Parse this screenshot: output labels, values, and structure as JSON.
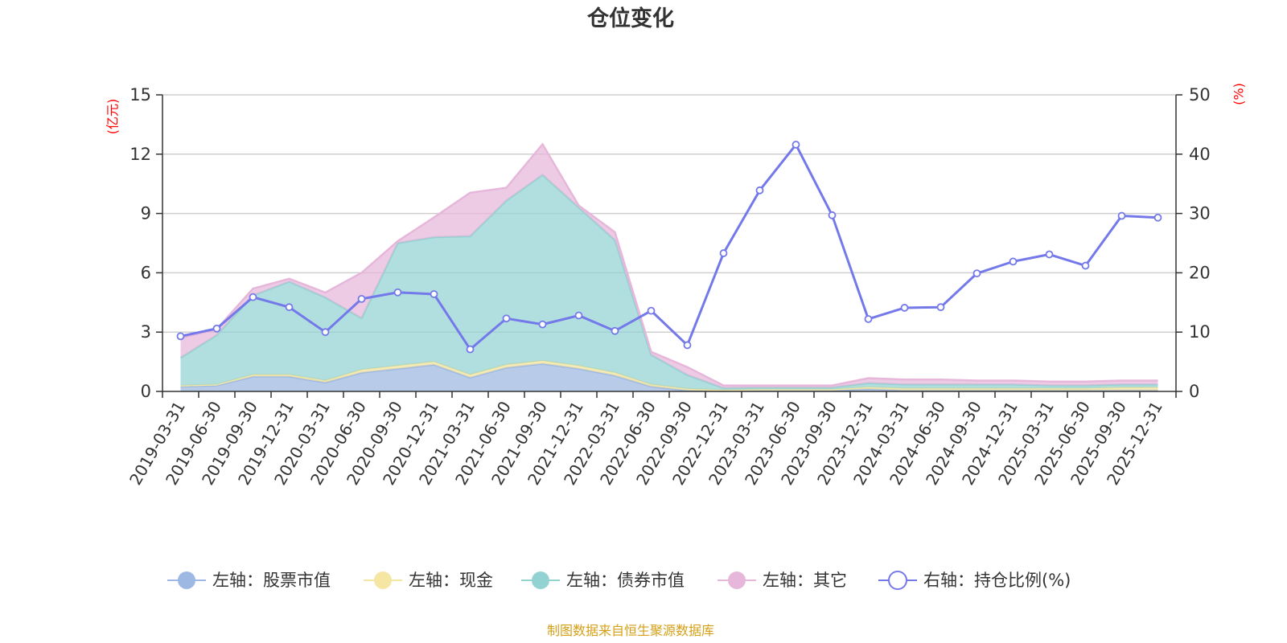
{
  "chart_data": {
    "type": "area",
    "title": "仓位变化",
    "left_axis": {
      "unit": "(亿元)",
      "range": [
        0,
        15
      ],
      "ticks": [
        "0",
        "3",
        "6",
        "9",
        "12",
        "15"
      ]
    },
    "right_axis": {
      "unit": "(%)",
      "range": [
        0,
        50
      ],
      "ticks": [
        "0",
        "10",
        "20",
        "30",
        "40",
        "50"
      ]
    },
    "categories": [
      "2019-03-31",
      "2019-06-30",
      "2019-09-30",
      "2019-12-31",
      "2020-03-31",
      "2020-06-30",
      "2020-09-30",
      "2020-12-31",
      "2021-03-31",
      "2021-06-30",
      "2021-09-30",
      "2021-12-31",
      "2022-03-31",
      "2022-06-30",
      "2022-09-30",
      "2022-12-31",
      "2023-03-31",
      "2023-06-30",
      "2023-09-30",
      "2023-12-31",
      "2024-03-31",
      "2024-06-30",
      "2024-09-30",
      "2024-12-31",
      "2025-03-31",
      "2025-06-30",
      "2025-09-30",
      "2025-12-31"
    ],
    "series": [
      {
        "name": "左轴：股票市值",
        "axis": "left",
        "kind": "stacked-area",
        "color": "#9db8e2",
        "values": [
          0.25,
          0.3,
          0.75,
          0.75,
          0.45,
          0.95,
          1.15,
          1.35,
          0.7,
          1.2,
          1.4,
          1.15,
          0.8,
          0.25,
          0.05,
          0.02,
          0.05,
          0.05,
          0.05,
          0.12,
          0.05,
          0.05,
          0.05,
          0.05,
          0.05,
          0.05,
          0.05,
          0.05
        ]
      },
      {
        "name": "左轴：现金",
        "axis": "left",
        "kind": "stacked-area",
        "color": "#f5e6a3",
        "values": [
          0.05,
          0.05,
          0.1,
          0.1,
          0.1,
          0.15,
          0.15,
          0.15,
          0.15,
          0.15,
          0.15,
          0.15,
          0.15,
          0.1,
          0.08,
          0.05,
          0.05,
          0.05,
          0.05,
          0.1,
          0.1,
          0.1,
          0.1,
          0.1,
          0.1,
          0.1,
          0.15,
          0.15
        ]
      },
      {
        "name": "左轴：债券市值",
        "axis": "left",
        "kind": "stacked-area",
        "color": "#93d2d2",
        "values": [
          1.4,
          2.5,
          4.0,
          4.7,
          4.2,
          2.6,
          6.2,
          6.3,
          7.0,
          8.3,
          9.4,
          8.0,
          6.7,
          1.5,
          0.7,
          0.1,
          0.1,
          0.1,
          0.1,
          0.2,
          0.2,
          0.2,
          0.2,
          0.2,
          0.15,
          0.15,
          0.15,
          0.15
        ]
      },
      {
        "name": "左轴：其它",
        "axis": "left",
        "kind": "stacked-area",
        "color": "#e6b7da",
        "values": [
          1.0,
          0.3,
          0.35,
          0.15,
          0.25,
          2.3,
          0.1,
          1.0,
          2.2,
          0.65,
          1.55,
          0.1,
          0.4,
          0.15,
          0.4,
          0.13,
          0.1,
          0.1,
          0.1,
          0.25,
          0.25,
          0.25,
          0.2,
          0.2,
          0.2,
          0.2,
          0.2,
          0.2
        ]
      },
      {
        "name": "右轴：持仓比例(%)",
        "axis": "right",
        "kind": "line",
        "color": "#7479ea",
        "values": [
          9.3,
          10.6,
          15.9,
          14.2,
          10.0,
          15.6,
          16.7,
          16.4,
          7.1,
          12.3,
          11.3,
          12.8,
          10.2,
          13.6,
          7.8,
          23.3,
          33.9,
          41.6,
          29.7,
          12.2,
          14.1,
          14.2,
          19.9,
          21.9,
          23.1,
          21.2,
          29.6,
          29.3
        ]
      }
    ],
    "legend_position": "bottom",
    "grid": true
  },
  "source_note": "制图数据来自恒生聚源数据库"
}
